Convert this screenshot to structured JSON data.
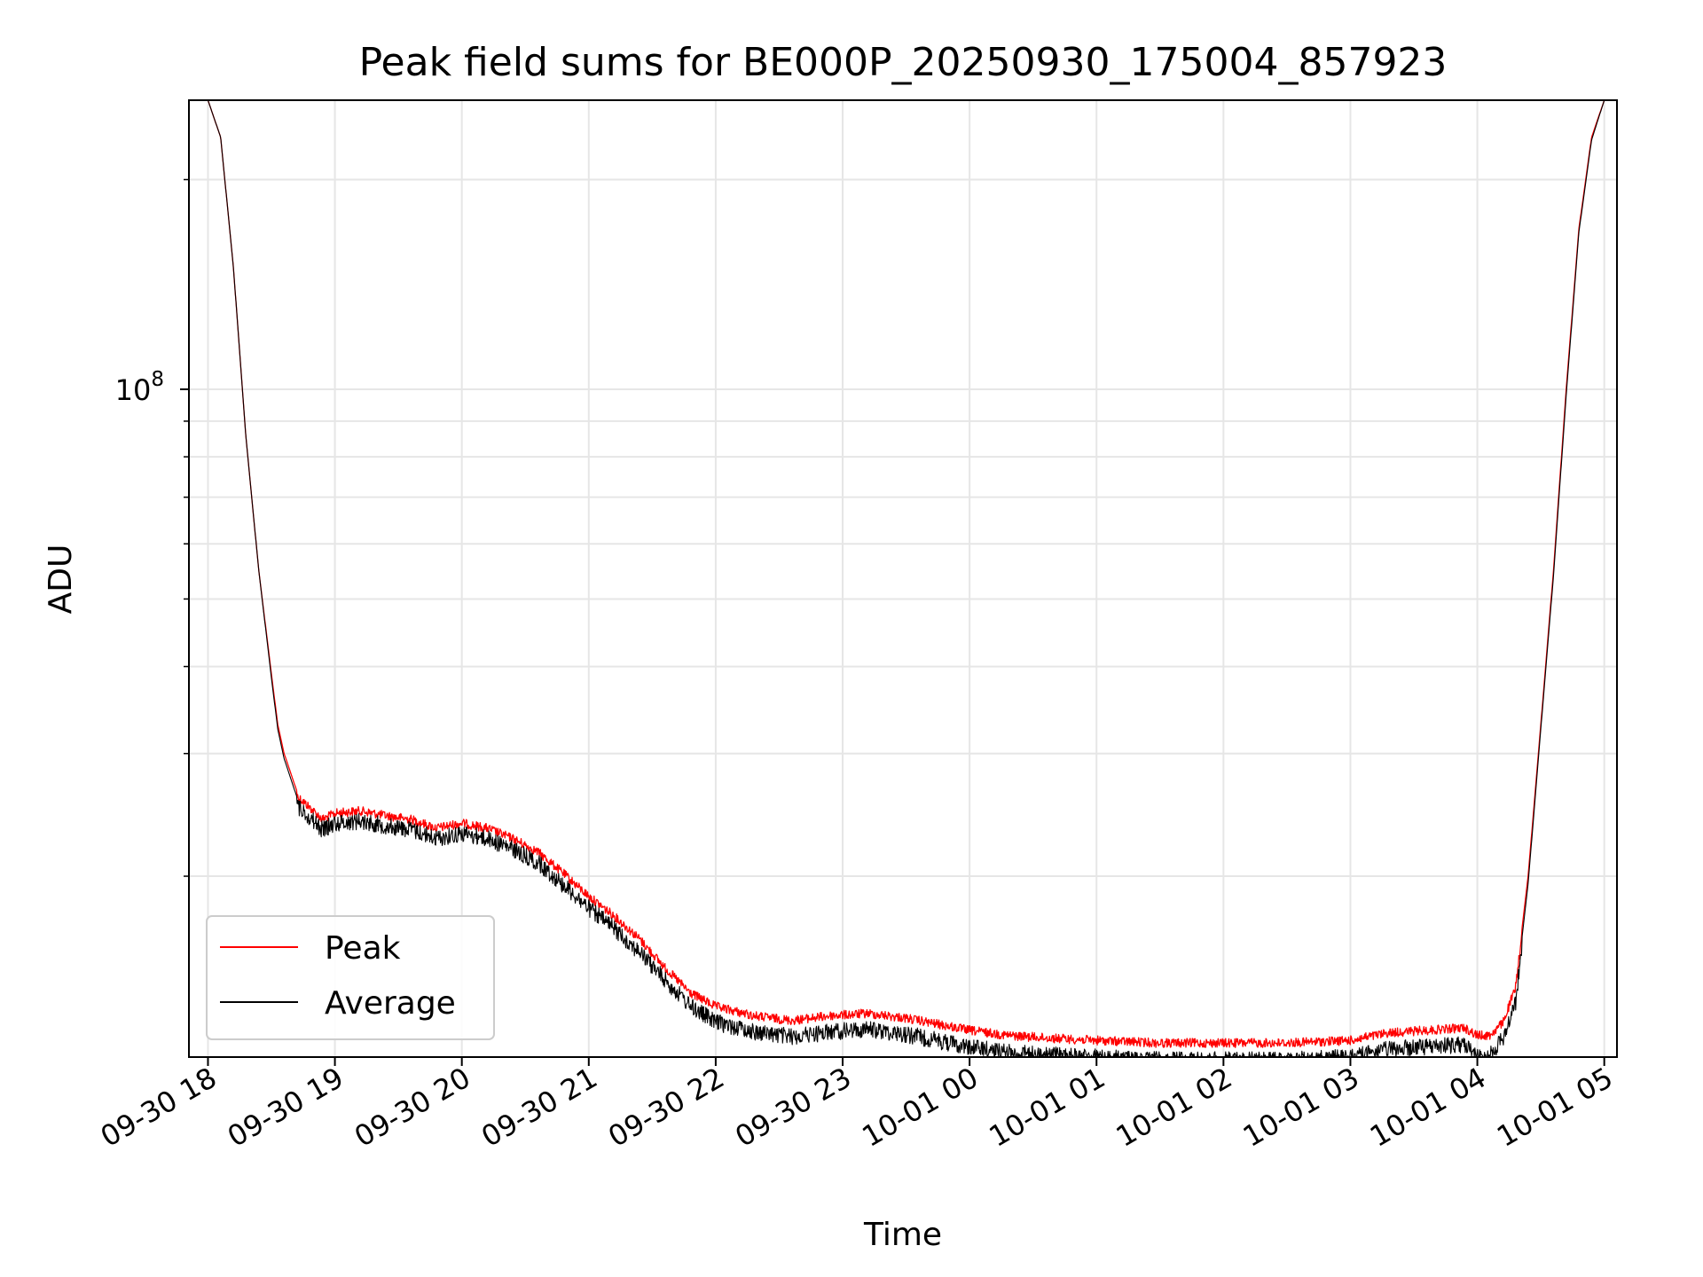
{
  "chart_data": {
    "type": "line",
    "title": "Peak field sums for BE000P_20250930_175004_857923",
    "xlabel": "Time",
    "ylabel": "ADU",
    "yscale": "log",
    "ylim": [
      11000000,
      260000000
    ],
    "y_tick_labels": [
      {
        "value": 100000000,
        "base": "10",
        "exp": "8"
      }
    ],
    "x_tick_hours": [
      0,
      1,
      2,
      3,
      4,
      5,
      6,
      7,
      8,
      9,
      10,
      11
    ],
    "x_tick_labels": [
      "09-30 18",
      "09-30 19",
      "09-30 20",
      "09-30 21",
      "09-30 22",
      "09-30 23",
      "10-01 00",
      "10-01 01",
      "10-01 02",
      "10-01 03",
      "10-01 04",
      "10-01 05"
    ],
    "xlim_hours": [
      -0.15,
      11.1
    ],
    "grid": true,
    "legend": {
      "location": "lower-left",
      "entries": [
        "Peak",
        "Average"
      ]
    },
    "colors": {
      "peak": "#ff0000",
      "average": "#000000",
      "grid": "#e6e6e6"
    },
    "series": [
      {
        "name": "Peak",
        "color": "#ff0000",
        "noise": 0.03,
        "x_hours": [
          0.0,
          0.1,
          0.2,
          0.3,
          0.4,
          0.5,
          0.55,
          0.6,
          0.7,
          0.8,
          0.9,
          1.0,
          1.2,
          1.4,
          1.6,
          1.8,
          2.0,
          2.2,
          2.4,
          2.6,
          2.8,
          3.0,
          3.2,
          3.4,
          3.6,
          3.8,
          4.0,
          4.3,
          4.6,
          4.9,
          5.2,
          5.5,
          5.8,
          6.0,
          6.3,
          6.6,
          7.0,
          7.5,
          8.0,
          8.5,
          9.0,
          9.3,
          9.6,
          9.9,
          10.0,
          10.1,
          10.2,
          10.3,
          10.4,
          10.5,
          10.6,
          10.7,
          10.8,
          10.9,
          11.0
        ],
        "values": [
          260000000,
          230000000,
          150000000,
          85000000,
          55000000,
          39000000,
          33000000,
          30000000,
          26500000,
          25500000,
          24500000,
          25000000,
          25200000,
          24800000,
          24500000,
          23800000,
          24200000,
          23800000,
          23000000,
          22000000,
          20500000,
          19000000,
          17800000,
          16500000,
          15000000,
          13800000,
          13200000,
          12800000,
          12600000,
          12800000,
          12900000,
          12700000,
          12400000,
          12200000,
          12000000,
          11900000,
          11800000,
          11700000,
          11700000,
          11700000,
          11800000,
          12100000,
          12200000,
          12300000,
          12000000,
          12000000,
          12500000,
          14000000,
          20000000,
          33000000,
          55000000,
          100000000,
          170000000,
          230000000,
          260000000
        ]
      },
      {
        "name": "Average",
        "color": "#000000",
        "noise": 0.055,
        "x_hours": [
          0.0,
          0.1,
          0.2,
          0.3,
          0.4,
          0.5,
          0.55,
          0.6,
          0.7,
          0.8,
          0.9,
          1.0,
          1.2,
          1.4,
          1.6,
          1.8,
          2.0,
          2.2,
          2.4,
          2.6,
          2.8,
          3.0,
          3.2,
          3.4,
          3.6,
          3.8,
          4.0,
          4.3,
          4.6,
          4.9,
          5.2,
          5.5,
          5.8,
          6.0,
          6.3,
          6.6,
          7.0,
          7.5,
          8.0,
          8.5,
          9.0,
          9.3,
          9.6,
          9.9,
          10.0,
          10.1,
          10.2,
          10.3,
          10.4,
          10.5,
          10.6,
          10.7,
          10.8,
          10.9,
          11.0
        ],
        "values": [
          260000000,
          230000000,
          150000000,
          85000000,
          55000000,
          38500000,
          32500000,
          29500000,
          26000000,
          25000000,
          24000000,
          24500000,
          24700000,
          24300000,
          24000000,
          23300000,
          23700000,
          23300000,
          22500000,
          21500000,
          20000000,
          18500000,
          17300000,
          16000000,
          14600000,
          13400000,
          12700000,
          12300000,
          12100000,
          12300000,
          12400000,
          12200000,
          11900000,
          11700000,
          11500000,
          11400000,
          11300000,
          11200000,
          11200000,
          11200000,
          11300000,
          11600000,
          11700000,
          11800000,
          11300000,
          11400000,
          12000000,
          13500000,
          19500000,
          32500000,
          54000000,
          98000000,
          168000000,
          228000000,
          260000000
        ]
      }
    ]
  }
}
